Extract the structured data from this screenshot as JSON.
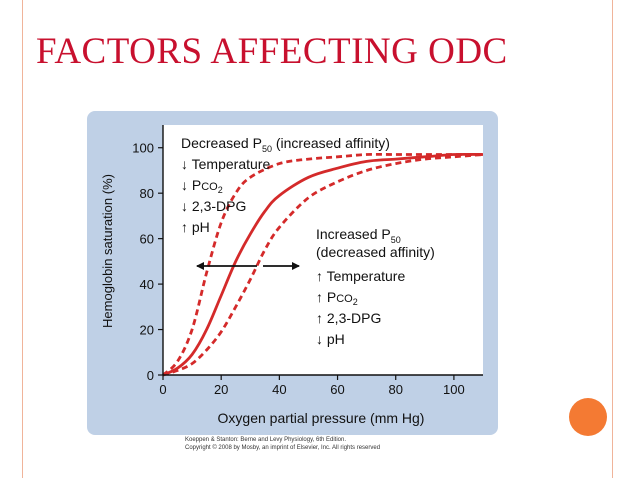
{
  "slide": {
    "title": "FACTORS AFFECTING ODC",
    "credit_line1": "Koeppen & Stanton: Berne and Levy Physiology, 6th Edition.",
    "credit_line2": "Copyright © 2008 by Mosby, an imprint of Elsevier, Inc. All rights reserved",
    "colors": {
      "title": "#c8102e",
      "curve": "#d42a2a",
      "accent_dot": "#f47a33",
      "panel": "#bfd0e6"
    }
  },
  "chart_data": {
    "type": "line",
    "xlabel": "Oxygen partial pressure (mm Hg)",
    "ylabel": "Hemoglobin saturation (%)",
    "xlim": [
      0,
      110
    ],
    "ylim": [
      0,
      110
    ],
    "xticks": [
      0,
      20,
      40,
      60,
      80,
      100
    ],
    "yticks": [
      0,
      20,
      40,
      60,
      80,
      100
    ],
    "grid": false,
    "series": [
      {
        "style": "dashed",
        "x": [
          0,
          5,
          10,
          15,
          20,
          25,
          30,
          40,
          50,
          60,
          70,
          80,
          90,
          100,
          110
        ],
        "y": [
          0,
          6,
          20,
          45,
          67,
          80,
          87,
          93,
          95,
          96,
          97,
          97,
          97,
          97,
          97
        ]
      },
      {
        "style": "solid",
        "x": [
          0,
          5,
          10,
          15,
          20,
          25,
          30,
          35,
          40,
          50,
          60,
          70,
          80,
          90,
          100,
          110
        ],
        "y": [
          0,
          3,
          9,
          20,
          35,
          50,
          62,
          72,
          79,
          87,
          91,
          94,
          95,
          96,
          97,
          97
        ]
      },
      {
        "style": "dashed",
        "x": [
          0,
          5,
          10,
          15,
          20,
          25,
          30,
          35,
          40,
          50,
          60,
          70,
          80,
          90,
          100,
          110
        ],
        "y": [
          0,
          2,
          5,
          11,
          19,
          30,
          42,
          55,
          65,
          78,
          85,
          90,
          93,
          95,
          96,
          97
        ]
      }
    ],
    "annotations": {
      "left_box": {
        "heading_main": "Decreased P",
        "heading_sub": "50",
        "heading_tail": " (increased affinity)",
        "items": [
          {
            "arrow": "↓",
            "text": "Temperature"
          },
          {
            "arrow": "↓",
            "text": "P",
            "small": "CO",
            "sub": "2"
          },
          {
            "arrow": "↓",
            "text": "2,3-DPG"
          },
          {
            "arrow": "↑",
            "text": "pH"
          }
        ]
      },
      "right_box": {
        "heading_main": "Increased P",
        "heading_sub": "50",
        "heading_line2": "(decreased affinity)",
        "items": [
          {
            "arrow": "↑",
            "text": "Temperature"
          },
          {
            "arrow": "↑",
            "text": "P",
            "small": "CO",
            "sub": "2"
          },
          {
            "arrow": "↑",
            "text": "2,3-DPG"
          },
          {
            "arrow": "↓",
            "text": "pH"
          }
        ]
      }
    }
  }
}
